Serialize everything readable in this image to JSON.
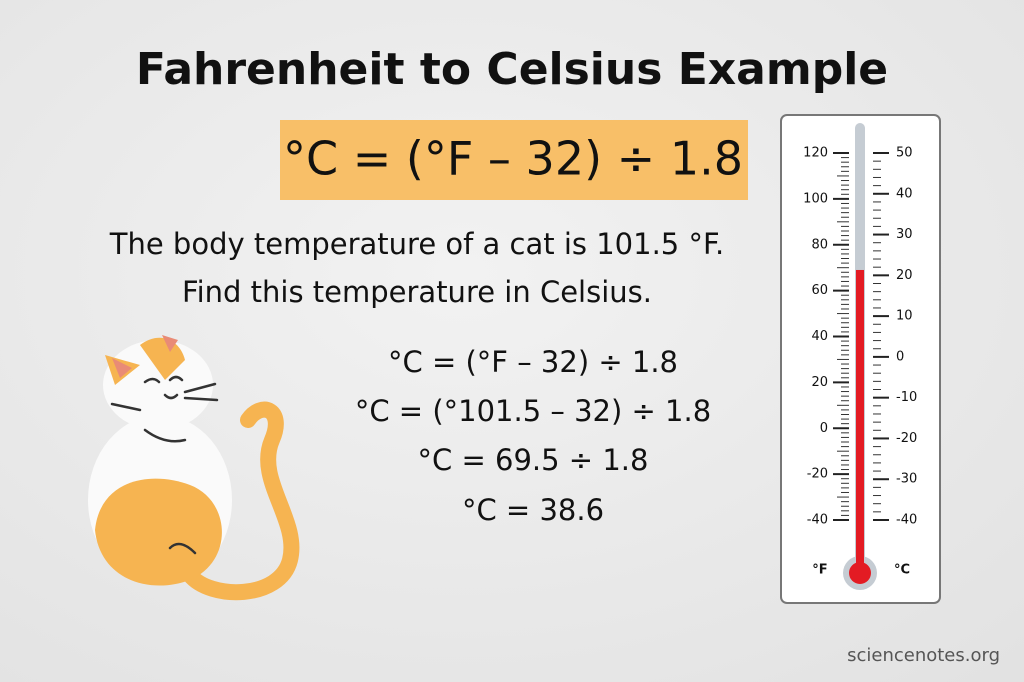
{
  "header": {
    "title": "Fahrenheit to Celsius Example"
  },
  "formula": "°C = (°F – 32) ÷ 1.8",
  "problem": [
    "The body temperature of a cat is 101.5 °F.",
    "Find this temperature in Celsius."
  ],
  "steps": [
    "°C = (°F – 32) ÷ 1.8",
    "°C = (°101.5 – 32) ÷ 1.8",
    "°C = 69.5 ÷ 1.8",
    "°C = 38.6"
  ],
  "thermometer": {
    "fahrenheit_unit": "°F",
    "celsius_unit": "°C",
    "fahrenheit_ticks": [
      120,
      100,
      80,
      60,
      40,
      20,
      0,
      -20,
      -40
    ],
    "celsius_ticks": [
      50,
      40,
      30,
      20,
      10,
      0,
      -10,
      -20,
      -30,
      -40
    ],
    "level": 69
  },
  "footer": "sciencenotes.org"
}
